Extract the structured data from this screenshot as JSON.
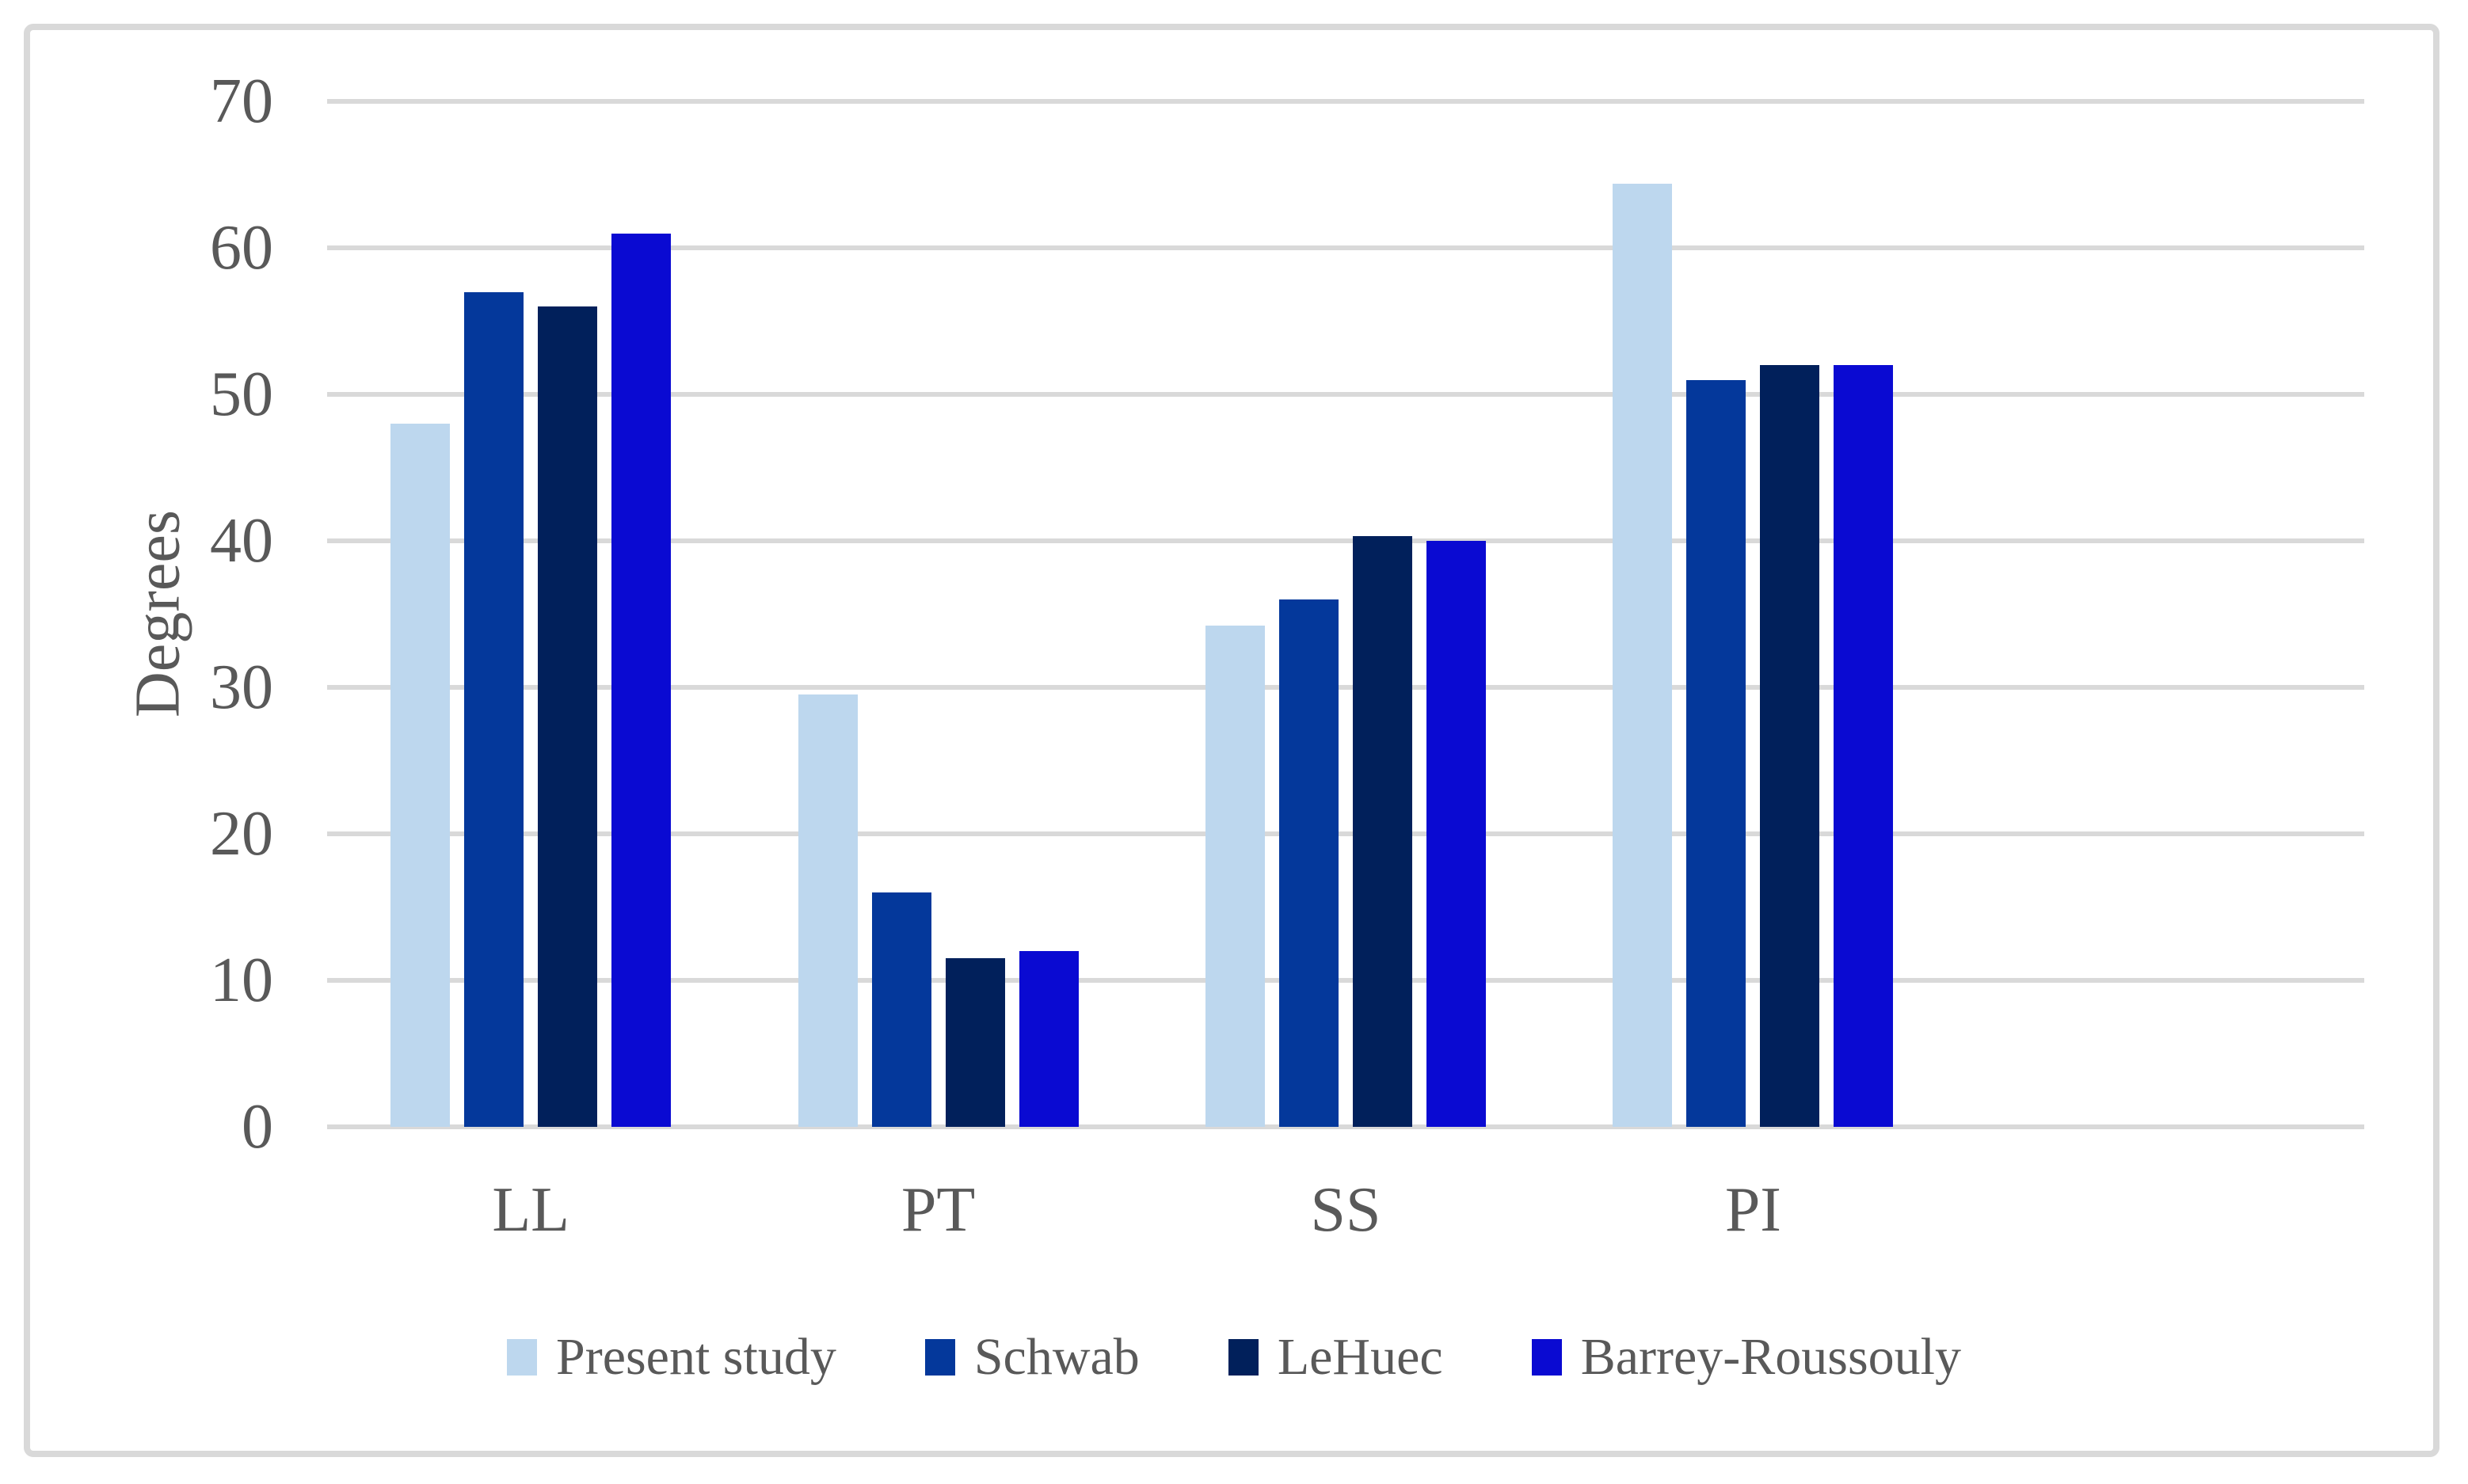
{
  "chart_data": {
    "type": "bar",
    "title": "",
    "xlabel": "",
    "ylabel": "Degrees",
    "categories": [
      "LL",
      "PT",
      "SS",
      "PI"
    ],
    "series": [
      {
        "name": "Present study",
        "color": "#BDD7EE",
        "values": [
          48,
          29.5,
          34.2,
          64.4
        ]
      },
      {
        "name": "Schwab",
        "color": "#04389B",
        "values": [
          57,
          16,
          36,
          51
        ]
      },
      {
        "name": "LeHuec",
        "color": "#01205B",
        "values": [
          56,
          11.5,
          40.3,
          52
        ]
      },
      {
        "name": "Barrey-Roussouly",
        "color": "#0A0AD2",
        "values": [
          61,
          12,
          40,
          52
        ]
      }
    ],
    "ylim": [
      0,
      70
    ],
    "yticks": [
      0,
      10,
      20,
      30,
      40,
      50,
      60,
      70
    ],
    "grid": true,
    "legend_position": "bottom",
    "gridline_color": "#D9D9D9",
    "border_color": "#D9D9D9",
    "text_color": "#595959",
    "background_color": "#FFFFFF"
  }
}
